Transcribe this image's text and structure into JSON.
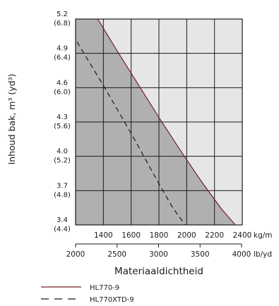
{
  "chart_data": {
    "type": "line",
    "title": "",
    "ylabel": "Inhoud bak, m³ (yd³)",
    "xlabel": "Materiaaldichtheid",
    "x_unit_primary": "kg/m",
    "x_unit_secondary": "lb/yd",
    "xlim_kg_m3": [
      1200,
      2400
    ],
    "ylim_m3": [
      3.4,
      5.2
    ],
    "grid": true,
    "y_ticks": [
      {
        "primary": "5.2",
        "secondary": "(6.8)",
        "value": 5.2
      },
      {
        "primary": "4.9",
        "secondary": "(6.4)",
        "value": 4.9
      },
      {
        "primary": "4.6",
        "secondary": "(6.0)",
        "value": 4.6
      },
      {
        "primary": "4.3",
        "secondary": "(5.6)",
        "value": 4.3
      },
      {
        "primary": "4.0",
        "secondary": "(5.2)",
        "value": 4.0
      },
      {
        "primary": "3.7",
        "secondary": "(4.8)",
        "value": 3.7
      },
      {
        "primary": "3.4",
        "secondary": "(4.4)",
        "value": 3.4
      }
    ],
    "x_ticks_primary": [
      {
        "label": "1400",
        "value": 1400
      },
      {
        "label": "1600",
        "value": 1600
      },
      {
        "label": "1800",
        "value": 1800
      },
      {
        "label": "2000",
        "value": 2000
      },
      {
        "label": "2200",
        "value": 2200
      },
      {
        "label": "2400",
        "value": 2400
      }
    ],
    "x_ticks_secondary": [
      {
        "label": "2000",
        "value_lb_yd3": 2000
      },
      {
        "label": "2500",
        "value_lb_yd3": 2500
      },
      {
        "label": "3000",
        "value_lb_yd3": 3000
      },
      {
        "label": "3500",
        "value_lb_yd3": 3500
      },
      {
        "label": "4000",
        "value_lb_yd3": 4000
      }
    ],
    "series": [
      {
        "name": "HL770-9",
        "style": "solid",
        "color": "#7a1f2b",
        "x": [
          1360,
          1500,
          1650,
          1800,
          1950,
          2100,
          2250,
          2350
        ],
        "y": [
          5.2,
          4.92,
          4.63,
          4.34,
          4.06,
          3.79,
          3.54,
          3.4
        ]
      },
      {
        "name": "HL770XTD-9",
        "style": "dashed",
        "color": "#1a1a1a",
        "x": [
          1210,
          1300,
          1400,
          1500,
          1600,
          1700,
          1800,
          1900,
          2000
        ],
        "y": [
          5.0,
          4.82,
          4.62,
          4.41,
          4.2,
          3.98,
          3.76,
          3.55,
          3.38
        ]
      }
    ],
    "shading": {
      "dark_color": "#b0b0b0",
      "light_color": "#e6e6e6",
      "boundary_series": "HL770-9"
    },
    "legend": {
      "placement": "bottom",
      "entries": [
        "HL770-9",
        "HL770XTD-9"
      ]
    }
  }
}
